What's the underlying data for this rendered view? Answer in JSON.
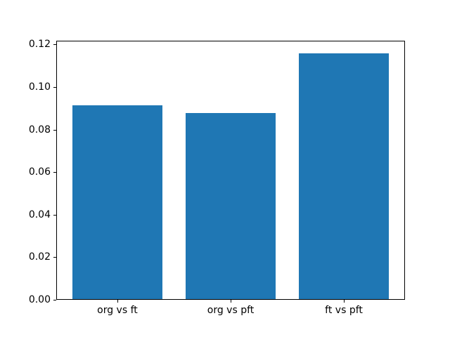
{
  "chart_data": {
    "type": "bar",
    "categories": [
      "org vs ft",
      "org vs pft",
      "ft vs pft"
    ],
    "values": [
      0.0915,
      0.0877,
      0.116
    ],
    "title": "",
    "xlabel": "",
    "ylabel": "",
    "ylim": [
      0,
      0.1218
    ],
    "yticks": [
      "0.00",
      "0.02",
      "0.04",
      "0.06",
      "0.08",
      "0.10",
      "0.12"
    ],
    "ytick_values": [
      0,
      0.02,
      0.04,
      0.06,
      0.08,
      0.1,
      0.12
    ],
    "bar_color": "#1f77b4",
    "bar_width_fraction": 0.8,
    "grid": false,
    "legend": null
  }
}
